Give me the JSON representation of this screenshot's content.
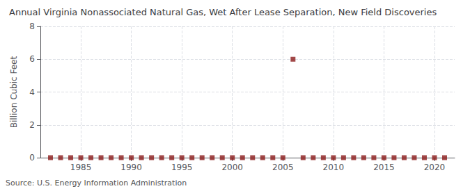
{
  "chart_data": {
    "type": "scatter",
    "title": "Annual Virginia Nonassociated Natural Gas, Wet After Lease Separation, New Field Discoveries",
    "ylabel": "Billion Cubic Feet",
    "annotation": "Source: U.S. Energy Information Administration",
    "x": [
      1982,
      1983,
      1984,
      1985,
      1986,
      1987,
      1988,
      1989,
      1990,
      1991,
      1992,
      1993,
      1994,
      1995,
      1996,
      1997,
      1998,
      1999,
      2000,
      2001,
      2002,
      2003,
      2004,
      2005,
      2006,
      2007,
      2008,
      2009,
      2010,
      2011,
      2012,
      2013,
      2014,
      2015,
      2016,
      2017,
      2018,
      2019,
      2020,
      2021
    ],
    "values": [
      0,
      0,
      0,
      0,
      0,
      0,
      0,
      0,
      0,
      0,
      0,
      0,
      0,
      0,
      0,
      0,
      0,
      0,
      0,
      0,
      0,
      0,
      0,
      0,
      6.0,
      0,
      0,
      0,
      0,
      0,
      0,
      0,
      0,
      0,
      0,
      0,
      0,
      0,
      0,
      0
    ],
    "color": "#8b1a1a",
    "marker": "square",
    "xlim": [
      1981,
      2022
    ],
    "xticks": [
      1985,
      1990,
      1995,
      2000,
      2005,
      2010,
      2015,
      2020
    ],
    "ylim": [
      0,
      8
    ],
    "yticks": [
      0,
      2,
      4,
      6,
      8
    ],
    "grid": true
  }
}
